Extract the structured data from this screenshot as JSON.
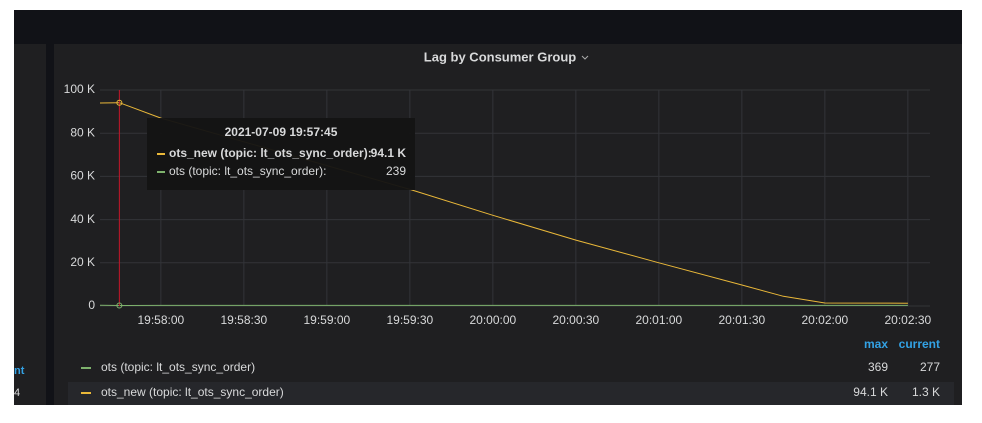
{
  "chart_data": {
    "type": "line",
    "title": "Lag by Consumer Group",
    "x": [
      "19:57:38",
      "19:57:45",
      "19:58:00",
      "19:58:30",
      "19:59:00",
      "19:59:30",
      "20:00:00",
      "20:00:30",
      "20:01:00",
      "20:01:30",
      "20:01:45",
      "20:02:00",
      "20:02:30"
    ],
    "xlim": [
      "19:57:38",
      "20:02:38"
    ],
    "xticks": [
      "19:58:00",
      "19:58:30",
      "19:59:00",
      "19:59:30",
      "20:00:00",
      "20:00:30",
      "20:01:00",
      "20:01:30",
      "20:02:00",
      "20:02:30"
    ],
    "ylim": [
      0,
      100000
    ],
    "yticks": [
      {
        "value": 0,
        "label": "0"
      },
      {
        "value": 20000,
        "label": "20 K"
      },
      {
        "value": 40000,
        "label": "40 K"
      },
      {
        "value": 60000,
        "label": "60 K"
      },
      {
        "value": 80000,
        "label": "80 K"
      },
      {
        "value": 100000,
        "label": "100 K"
      }
    ],
    "grid": true,
    "series": [
      {
        "name": "ots (topic: lt_ots_sync_order)",
        "color": "#7eb26d",
        "values": [
          369,
          239,
          300,
          290,
          280,
          275,
          270,
          285,
          280,
          275,
          280,
          278,
          277
        ]
      },
      {
        "name": "ots_new (topic: lt_ots_sync_order)",
        "color": "#eab839",
        "values": [
          94000,
          94100,
          87000,
          76000,
          65000,
          54000,
          42000,
          30500,
          20000,
          9700,
          4500,
          1400,
          1300
        ]
      }
    ],
    "crosshair": "19:57:45",
    "tooltip": {
      "time": "2021-07-09 19:57:45",
      "rows": [
        {
          "series": 1,
          "label": "ots_new (topic: lt_ots_sync_order):",
          "value": 94100,
          "value_label": "94.1 K"
        },
        {
          "series": 0,
          "label": "ots (topic: lt_ots_sync_order):",
          "value": 239
        }
      ]
    },
    "legend": {
      "columns": [
        "max",
        "current"
      ],
      "rows": [
        {
          "series": 0,
          "max": 369,
          "current": 277
        },
        {
          "series": 1,
          "max": 94100,
          "max_label": "94.1 K",
          "current": 1300,
          "current_label": "1.3 K"
        }
      ]
    }
  },
  "left_panel": {
    "header": "nt",
    "value": "4"
  }
}
